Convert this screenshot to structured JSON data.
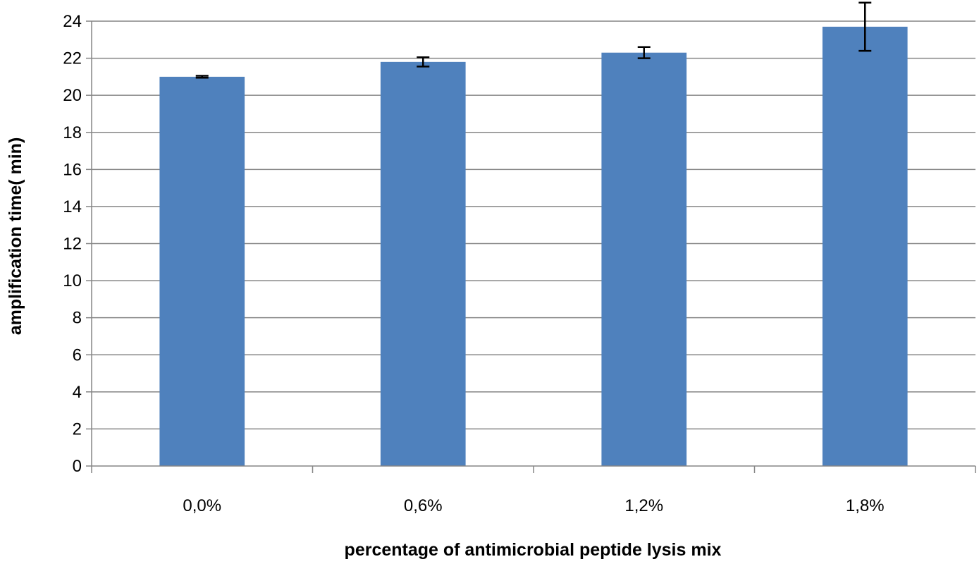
{
  "chart_data": {
    "type": "bar",
    "title": "",
    "xlabel": "percentage of antimicrobial  peptide  lysis  mix",
    "ylabel": "amplification  time( min)",
    "categories": [
      "0,0%",
      "0,6%",
      "1,2%",
      "1,8%"
    ],
    "series": [
      {
        "values": [
          21.0,
          21.8,
          22.3,
          23.7
        ],
        "error": [
          0.05,
          0.25,
          0.3,
          1.3
        ]
      }
    ],
    "ylim": [
      0,
      24
    ],
    "yticks": [
      0,
      2,
      4,
      6,
      8,
      10,
      12,
      14,
      16,
      18,
      20,
      22,
      24
    ],
    "ytick_labels": [
      "0",
      "2",
      "4",
      "6",
      "8",
      "10",
      "12",
      "14",
      "16",
      "18",
      "20",
      "22",
      "24"
    ],
    "grid": true,
    "legend": "none",
    "colors": {
      "bar": "#4f81bd",
      "grid": "#868686",
      "axis": "#868686",
      "error_bar": "#000000"
    }
  }
}
